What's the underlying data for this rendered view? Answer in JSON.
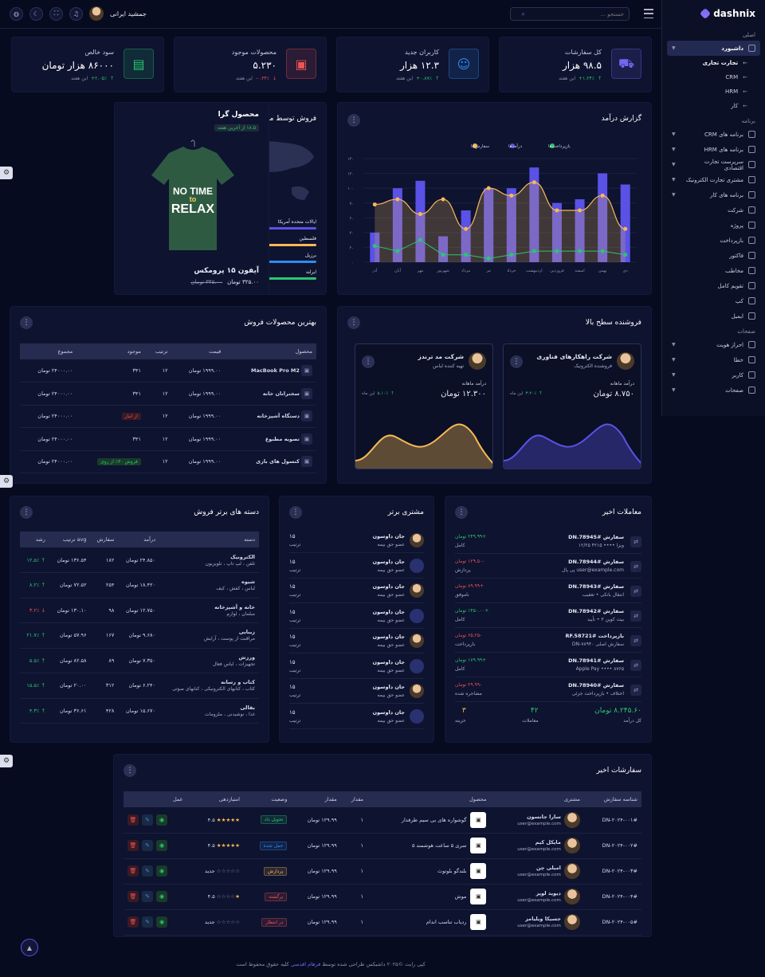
{
  "sidebar": {
    "brand": "dashnix",
    "sections": {
      "main": "اصلی",
      "apps": "برنامه",
      "pages": "صفحات"
    },
    "dashboard": "داشبورد",
    "sub": [
      "تجارت تجاری",
      "CRM",
      "HRM",
      "کار"
    ],
    "apps": [
      "برنامه های CRM",
      "برنامه های HRM",
      "سرپرست تجارت اقتصادی",
      "مشتری تجارت الکترونیک",
      "برنامه های کار",
      "شرکت",
      "پروژه",
      "بازپرداخت",
      "فاکتور",
      "مخاطب",
      "تقویم کامل",
      "کپ",
      "ایمیل"
    ],
    "pages": [
      "احراز هویت",
      "خطا",
      "کاربر",
      "صفحات"
    ]
  },
  "topbar": {
    "search_placeholder": "جستجو ...",
    "username": "جمشید ایرانی"
  },
  "stats": [
    {
      "title": "کل سفارشات",
      "value": "۹۸.۵ هزار",
      "change": "۱.۲۴٪+",
      "note": "این هفته",
      "up": true,
      "icon": "bag-icon",
      "color": "#7367f0"
    },
    {
      "title": "کاربران جدید",
      "value": "۱۲.۳ هزار",
      "change": "۰.۸۷٪+",
      "note": "این هفته",
      "up": true,
      "icon": "user-icon",
      "color": "#2d8cf0"
    },
    {
      "title": "محصولات موجود",
      "value": "۵.۲۳۰",
      "change": "۰.۳۴٪-",
      "note": "این هفته",
      "up": false,
      "icon": "box-icon",
      "color": "#ea5455"
    },
    {
      "title": "سود خالص",
      "value": "۸۶۰۰۰ هزار تومان",
      "change": "۲.۰۵٪+",
      "note": "این هفته",
      "up": true,
      "icon": "wallet-icon",
      "color": "#29c76f"
    }
  ],
  "revenue": {
    "title": "گزارش درآمد",
    "legend": [
      "بازپرداخت‌ها",
      "درآمدها",
      "سفارش‌ها"
    ],
    "chart_data": {
      "type": "bar",
      "categories": [
        "دی",
        "بهمن",
        "اسفند",
        "فروردین",
        "اردیبهشت",
        "خرداد",
        "تیر",
        "مرداد",
        "شهریور",
        "مهر",
        "آبان",
        "آذر"
      ],
      "yticks": [
        "۰",
        "۲۰",
        "۴۰",
        "۶۰",
        "۸۰",
        "۱۰۰",
        "۱۲۰",
        "۱۴۰"
      ],
      "ylim": [
        0,
        140
      ],
      "series": [
        {
          "name": "درآمدها",
          "type": "bar",
          "values": [
            105,
            120,
            85,
            80,
            128,
            100,
            100,
            70,
            35,
            110,
            100,
            40
          ]
        },
        {
          "name": "سفارش‌ها",
          "type": "area",
          "values": [
            45,
            90,
            70,
            70,
            108,
            90,
            100,
            45,
            85,
            65,
            85,
            78
          ]
        },
        {
          "name": "بازپرداخت‌ها",
          "type": "line",
          "values": [
            10,
            15,
            15,
            15,
            15,
            10,
            5,
            10,
            10,
            30,
            15,
            22
          ]
        }
      ]
    }
  },
  "locations": {
    "title": "فروش توسط مکان ها",
    "map_labels": [
      "ایرلند",
      "ایالات متحده",
      "فلسطین",
      "برزیل"
    ],
    "items": [
      {
        "name": "ایالات متحده آمریکا",
        "pct": "۷۰ ٪",
        "value": 0.7,
        "color": "#5a52e6"
      },
      {
        "name": "فلسطین",
        "pct": "۸۵ ٪",
        "value": 0.85,
        "color": "#f7b955"
      },
      {
        "name": "برزیل",
        "pct": "۶۰ ٪",
        "value": 0.6,
        "color": "#2d8cf0"
      },
      {
        "name": "ایرلند",
        "pct": "۵۰ ٪",
        "value": 0.5,
        "color": "#29c76f"
      }
    ]
  },
  "hot": {
    "title": "محصول گرا",
    "badge": "۱۸.۵ از آخرین هفته",
    "shirt_text1": "NO TIME",
    "shirt_text2": "to",
    "shirt_text3": "RELAX",
    "name": "آیفون ۱۵ پرومکس",
    "price": "۳۲۵.۰۰ تومان",
    "old": "۳۴۵.۰۰ تومان"
  },
  "best": {
    "title": "بهترین محصولات فروش",
    "headers": [
      "محصول",
      "قیمت",
      "ترتیب",
      "موجود",
      "مجموع"
    ],
    "rows": [
      {
        "name": "MacBook Pro M2",
        "price": "۱۹۹۹.۰۰ تومان",
        "order": "۱۲",
        "stock": "۳۴۱",
        "total": "۲۴۰۰۰.۰۰ تومان",
        "badge": ""
      },
      {
        "name": "سخنرانان خانه",
        "price": "۱۹۹۹.۰۰ تومان",
        "order": "۱۲",
        "stock": "۳۴۱",
        "total": "۲۴۰۰۰.۰۰ تومان",
        "badge": ""
      },
      {
        "name": "دستگاه آشپزخانه",
        "price": "۱۹۹۹.۰۰ تومان",
        "order": "۱۲",
        "stock": "",
        "total": "۲۴۰۰۰.۰۰ تومان",
        "badge": "از انبار"
      },
      {
        "name": "تصویه مطبوع",
        "price": "۱۹۹۹.۰۰ تومان",
        "order": "۱۲",
        "stock": "۳۴۱",
        "total": "۲۴۰۰۰.۰۰ تومان",
        "badge": ""
      },
      {
        "name": "کنسول های بازی",
        "price": "۱۹۹۹.۰۰ تومان",
        "order": "۱۲",
        "stock": "",
        "total": "۲۴۰۰۰.۰۰ تومان",
        "badge": "فروش ۳۰٪ از روی"
      }
    ]
  },
  "sellers": {
    "title": "فروشنده سطح بالا",
    "list": [
      {
        "name": "شرکت راهکارهای فناوری",
        "role": "فروشنده الکترونیک",
        "label": "درآمد ماهانه",
        "value": "۸.۷۵۰ تومان",
        "change": "۳.۲۰٪",
        "note": "این ماه",
        "color": "#5a52e6"
      },
      {
        "name": "شرکت مد ترندز",
        "role": "تهیه کننده لباس",
        "label": "درآمد ماهانه",
        "value": "۱۲.۳۰۰ تومان",
        "change": "۵.۱۰٪",
        "note": "این ماه",
        "color": "#f7b955"
      }
    ]
  },
  "transactions": {
    "title": "معاملات اخیر",
    "rows": [
      {
        "id": "سفارش #DN.78945",
        "sub": "ویزا •••• ۴۲۱۵ ۱۲/۲۵",
        "amount": "+۲۴۹.۹۹ تومان",
        "status": "کامل",
        "pos": true
      },
      {
        "id": "سفارش #DN.78944",
        "sub": "user@example.com پی پال",
        "amount": "-۱۲۹.۵۰ تومان",
        "status": "پردازش",
        "pos": false
      },
      {
        "id": "سفارش #DN.78943",
        "sub": "انتقال بانکی • تعقیب",
        "amount": "+۸۹.۹۹ تومان",
        "status": "ناموفق",
        "pos": false
      },
      {
        "id": "سفارش #DN.78942",
        "sub": "بیت کوین ۳ • تأیید",
        "amount": "+۱۴۵۰.۰۰ تومان",
        "status": "کامل",
        "pos": true
      },
      {
        "id": "بازپرداخت #RF.58721",
        "sub": "سفارش اصلی DN-۷۸۹۴۰",
        "amount": "-۶۵.۲۵ تومان",
        "status": "بازپرداخت",
        "pos": false
      },
      {
        "id": "سفارش #DN.78941",
        "sub": "Apple Pay •••• ۸۷۶۵",
        "amount": "+۱۷۹.۹۹ تومان",
        "status": "کامل",
        "pos": true
      },
      {
        "id": "سفارش #DN.78940",
        "sub": "اختلاف • بازپرداخت جزئی",
        "amount": "-۲۹.۹۹ تومان",
        "status": "مشاجره شده",
        "pos": false
      }
    ],
    "summary": [
      {
        "v": "۸.۲۴۵.۶۰ تومان",
        "l": "کل درآمد"
      },
      {
        "v": "۴۲",
        "l": "معاملات"
      },
      {
        "v": "۳",
        "l": "خزینه"
      }
    ]
  },
  "customers": {
    "title": "مشتری برتر",
    "name": "جان داوسون",
    "role": "عضو حق بیمه",
    "count": "۱۵",
    "count_label": "ترتیب",
    "rows": 8
  },
  "categories": {
    "title": "دسته های برتر فروش",
    "headers": [
      "دسته",
      "درآمد",
      "سفارش",
      "avg ترتیب",
      "رشد"
    ],
    "rows": [
      {
        "name": "الکترونیک",
        "sub": "تلفن ، لپ تاپ ، تلویزیون",
        "rev": "۲۴.۸۵۰ تومان",
        "orders": "۱۸۲",
        "avg": "۱۳۶.۵۴ تومان",
        "g": "۱۲.۵٪",
        "up": true
      },
      {
        "name": "شیوه",
        "sub": "لباس ، کفش ، کیف",
        "rev": "۱۸.۴۲۰ تومان",
        "orders": "۲۵۴",
        "avg": "۷۲.۵۲ تومان",
        "g": "۸.۲٪",
        "up": true
      },
      {
        "name": "خانه و آشپزخانه",
        "sub": "مبلمان ، لوازم",
        "rev": "۱۲.۷۵۰ تومان",
        "orders": "۹۸",
        "avg": "۱۳۰.۱۰ تومان",
        "g": "۳.۲٪",
        "up": false
      },
      {
        "name": "زیبایی",
        "sub": "مراقبت از پوست ، آرایش",
        "rev": "۹.۶۸۰ تومان",
        "orders": "۱۶۷",
        "avg": "۵۷.۹۶ تومان",
        "g": "۲۱.۷٪",
        "up": true
      },
      {
        "name": "ورزش",
        "sub": "تجهیزات ، لباس فعال",
        "rev": "۷.۳۵۰ تومان",
        "orders": "۸۹",
        "avg": "۸۲.۵۸ تومان",
        "g": "۵.۵٪",
        "up": true
      },
      {
        "name": "کتاب و رسانه",
        "sub": "کتاب ، کتابهای الکترونیکی ، کتابهای صوتی",
        "rev": "۶.۲۴۰ تومان",
        "orders": "۳۱۲",
        "avg": "۲۰.۰۰ تومان",
        "g": "۱۵.۵٪",
        "up": true
      },
      {
        "name": "بقالی",
        "sub": "غذا ، نوشیدنی ، ملزومات",
        "rev": "۱۵.۶۷۰ تومان",
        "orders": "۴۲۸",
        "avg": "۳۶.۶۱ تومان",
        "g": "۴.۳٪",
        "up": true
      }
    ]
  },
  "orders": {
    "title": "سفارشات اخیر",
    "headers": [
      "شناسه سفارش",
      "مشتری",
      "محصول",
      "مقدار",
      "مقدار",
      "وضعیت",
      "امتیازدهی",
      "عمل"
    ],
    "rows": [
      {
        "id": "#DN-۲۰۲۴-۰۰۱",
        "cust": "سارا جانسون",
        "email": "user@example.com",
        "prod": "گوشواره های بی سیم طرفدار",
        "qty": "۱",
        "amt": "۱۲۹.۹۹ تومان",
        "status": "تحویل داد",
        "sc": "#29c76f",
        "stars": 5,
        "rate": "۴.۵"
      },
      {
        "id": "#DN-۲۰۲۴-۰۰۲",
        "cust": "مایکل کیم",
        "email": "user@example.com",
        "prod": "سری ۵ ساعت هوشمند ۵",
        "qty": "۱",
        "amt": "۱۲۹.۹۹ تومان",
        "status": "حمل شده",
        "sc": "#2d8cf0",
        "stars": 5,
        "rate": "۴.۵"
      },
      {
        "id": "#DN-۲۰۲۴-۰۰۳",
        "cust": "امیلی چن",
        "email": "user@example.com",
        "prod": "بلندگو بلوتوث",
        "qty": "۱",
        "amt": "۱۲۹.۹۹ تومان",
        "status": "پردازش",
        "sc": "#f7b955",
        "stars": 0,
        "rate": "جدید"
      },
      {
        "id": "#DN-۲۰۲۴-۰۰۴",
        "cust": "دیوید لوپز",
        "email": "user@example.com",
        "prod": "موش",
        "qty": "۱",
        "amt": "۱۲۹.۹۹ تومان",
        "status": "برگشته",
        "sc": "#ea5455",
        "stars": 1,
        "rate": "۴.۵"
      },
      {
        "id": "#DN-۲۰۲۴-۰۰۵",
        "cust": "جسیکا ویلیامز",
        "email": "user@example.com",
        "prod": "ردیاب تناسب اندام",
        "qty": "۱",
        "amt": "۱۲۹.۹۹ تومان",
        "status": "در انتظار",
        "sc": "#ea5455",
        "stars": 0,
        "rate": "جدید"
      }
    ]
  },
  "footer": {
    "a": "کپی رایت ©۲۰۲۵ داشیکس طراحی شده توسط ",
    "b": "فرهام اقدسی",
    "c": " کلیه حقوق محفوظ است"
  }
}
